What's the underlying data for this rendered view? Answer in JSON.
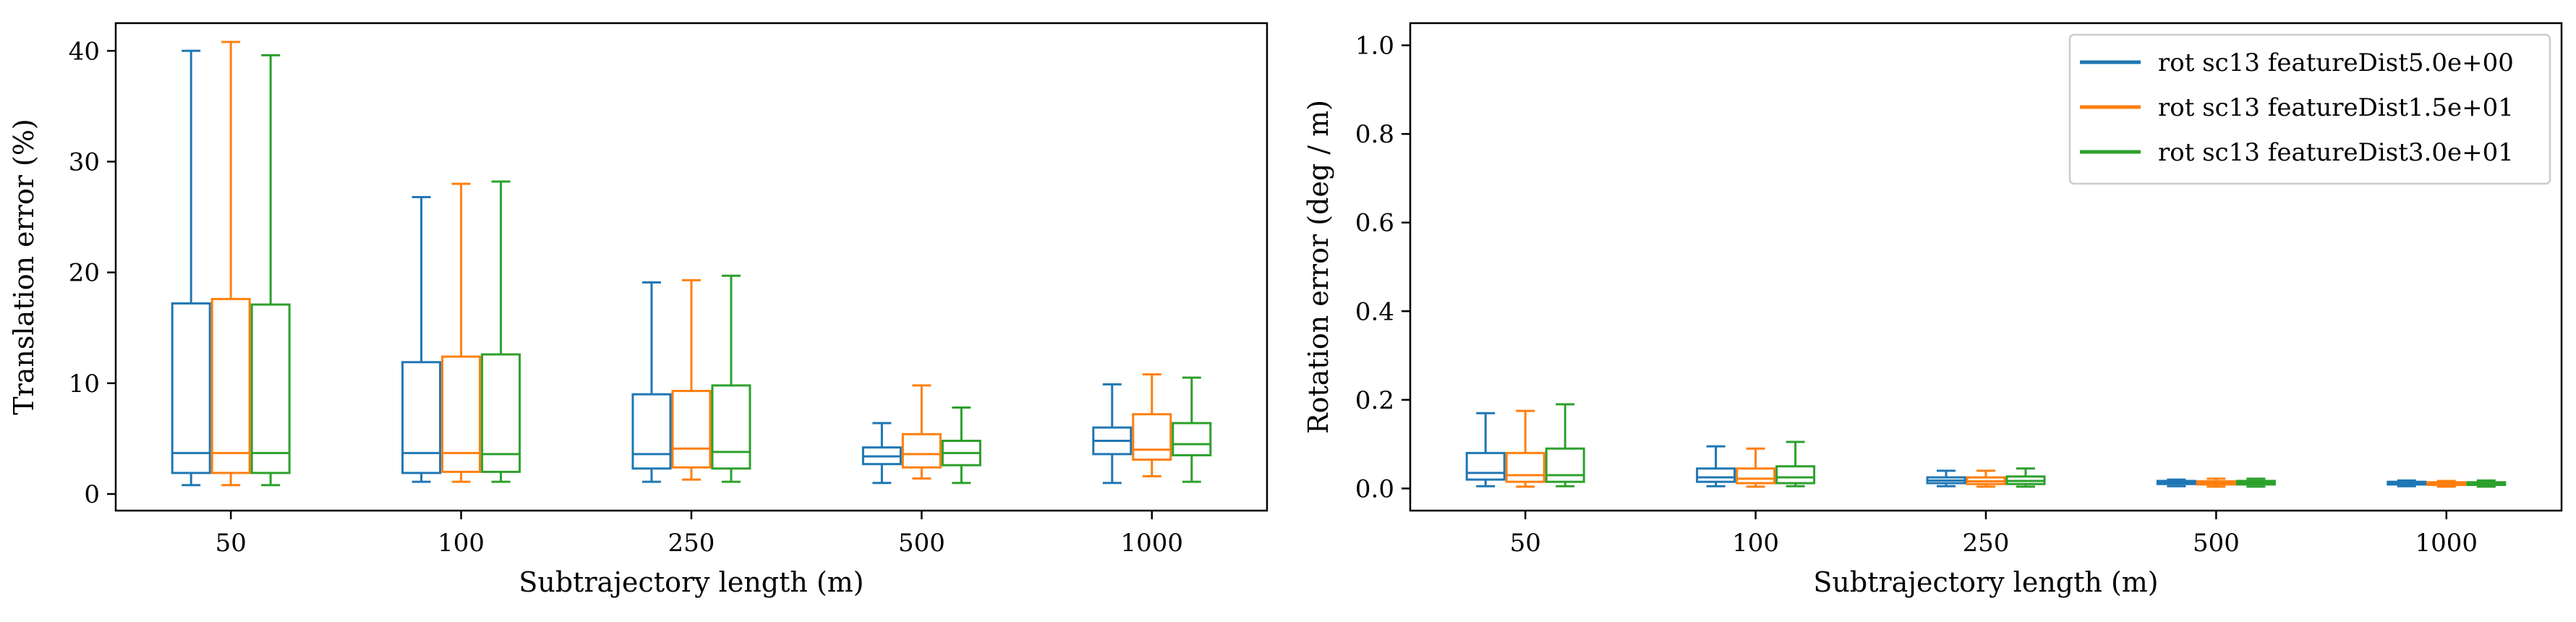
{
  "chart_data": [
    {
      "type": "box",
      "xlabel": "Subtrajectory length (m)",
      "ylabel": "Translation error (%)",
      "categories": [
        "50",
        "100",
        "250",
        "500",
        "1000"
      ],
      "ylim": [
        -1.5,
        42.5
      ],
      "yticks": [
        0,
        10,
        20,
        30,
        40
      ],
      "grid": false,
      "series": [
        {
          "name": "rot sc13 featureDist5.0e+00",
          "color": "#1f77b4",
          "boxes": [
            {
              "whislo": 0.8,
              "q1": 1.9,
              "median": 3.7,
              "q3": 17.2,
              "whishi": 40.0
            },
            {
              "whislo": 1.1,
              "q1": 1.9,
              "median": 3.7,
              "q3": 11.9,
              "whishi": 26.8
            },
            {
              "whislo": 1.1,
              "q1": 2.3,
              "median": 3.6,
              "q3": 9.0,
              "whishi": 19.1
            },
            {
              "whislo": 1.0,
              "q1": 2.7,
              "median": 3.4,
              "q3": 4.2,
              "whishi": 6.4
            },
            {
              "whislo": 1.0,
              "q1": 3.6,
              "median": 4.8,
              "q3": 6.0,
              "whishi": 9.9
            }
          ]
        },
        {
          "name": "rot sc13 featureDist1.5e+01",
          "color": "#ff7f0e",
          "boxes": [
            {
              "whislo": 0.8,
              "q1": 1.9,
              "median": 3.7,
              "q3": 17.6,
              "whishi": 40.8
            },
            {
              "whislo": 1.1,
              "q1": 2.0,
              "median": 3.7,
              "q3": 12.4,
              "whishi": 28.0
            },
            {
              "whislo": 1.3,
              "q1": 2.4,
              "median": 4.1,
              "q3": 9.3,
              "whishi": 19.3
            },
            {
              "whislo": 1.4,
              "q1": 2.4,
              "median": 3.6,
              "q3": 5.4,
              "whishi": 9.8
            },
            {
              "whislo": 1.6,
              "q1": 3.1,
              "median": 4.0,
              "q3": 7.2,
              "whishi": 10.8
            }
          ]
        },
        {
          "name": "rot sc13 featureDist3.0e+01",
          "color": "#2ca02c",
          "boxes": [
            {
              "whislo": 0.8,
              "q1": 1.9,
              "median": 3.7,
              "q3": 17.1,
              "whishi": 39.6
            },
            {
              "whislo": 1.1,
              "q1": 2.0,
              "median": 3.6,
              "q3": 12.6,
              "whishi": 28.2
            },
            {
              "whislo": 1.1,
              "q1": 2.3,
              "median": 3.8,
              "q3": 9.8,
              "whishi": 19.7
            },
            {
              "whislo": 1.0,
              "q1": 2.6,
              "median": 3.7,
              "q3": 4.8,
              "whishi": 7.8
            },
            {
              "whislo": 1.1,
              "q1": 3.5,
              "median": 4.5,
              "q3": 6.4,
              "whishi": 10.5
            }
          ]
        }
      ]
    },
    {
      "type": "box",
      "xlabel": "Subtrajectory length (m)",
      "ylabel": "Rotation error (deg / m)",
      "categories": [
        "50",
        "100",
        "250",
        "500",
        "1000"
      ],
      "ylim": [
        -0.05,
        1.05
      ],
      "yticks": [
        0.0,
        0.2,
        0.4,
        0.6,
        0.8,
        1.0
      ],
      "grid": false,
      "legend_position": "top-right",
      "series": [
        {
          "name": "rot sc13 featureDist5.0e+00",
          "color": "#1f77b4",
          "boxes": [
            {
              "whislo": 0.005,
              "q1": 0.02,
              "median": 0.035,
              "q3": 0.08,
              "whishi": 0.17
            },
            {
              "whislo": 0.005,
              "q1": 0.015,
              "median": 0.025,
              "q3": 0.045,
              "whishi": 0.095
            },
            {
              "whislo": 0.005,
              "q1": 0.012,
              "median": 0.018,
              "q3": 0.025,
              "whishi": 0.04
            },
            {
              "whislo": 0.005,
              "q1": 0.01,
              "median": 0.013,
              "q3": 0.017,
              "whishi": 0.02
            },
            {
              "whislo": 0.005,
              "q1": 0.009,
              "median": 0.012,
              "q3": 0.015,
              "whishi": 0.018
            }
          ]
        },
        {
          "name": "rot sc13 featureDist1.5e+01",
          "color": "#ff7f0e",
          "boxes": [
            {
              "whislo": 0.004,
              "q1": 0.015,
              "median": 0.03,
              "q3": 0.08,
              "whishi": 0.175
            },
            {
              "whislo": 0.004,
              "q1": 0.012,
              "median": 0.022,
              "q3": 0.045,
              "whishi": 0.09
            },
            {
              "whislo": 0.004,
              "q1": 0.01,
              "median": 0.016,
              "q3": 0.025,
              "whishi": 0.04
            },
            {
              "whislo": 0.004,
              "q1": 0.009,
              "median": 0.012,
              "q3": 0.016,
              "whishi": 0.022
            },
            {
              "whislo": 0.004,
              "q1": 0.008,
              "median": 0.011,
              "q3": 0.014,
              "whishi": 0.017
            }
          ]
        },
        {
          "name": "rot sc13 featureDist3.0e+01",
          "color": "#2ca02c",
          "boxes": [
            {
              "whislo": 0.005,
              "q1": 0.015,
              "median": 0.03,
              "q3": 0.09,
              "whishi": 0.19
            },
            {
              "whislo": 0.005,
              "q1": 0.012,
              "median": 0.025,
              "q3": 0.05,
              "whishi": 0.105
            },
            {
              "whislo": 0.004,
              "q1": 0.01,
              "median": 0.017,
              "q3": 0.027,
              "whishi": 0.045
            },
            {
              "whislo": 0.004,
              "q1": 0.009,
              "median": 0.013,
              "q3": 0.017,
              "whishi": 0.022
            },
            {
              "whislo": 0.004,
              "q1": 0.008,
              "median": 0.011,
              "q3": 0.014,
              "whishi": 0.018
            }
          ]
        }
      ]
    }
  ]
}
